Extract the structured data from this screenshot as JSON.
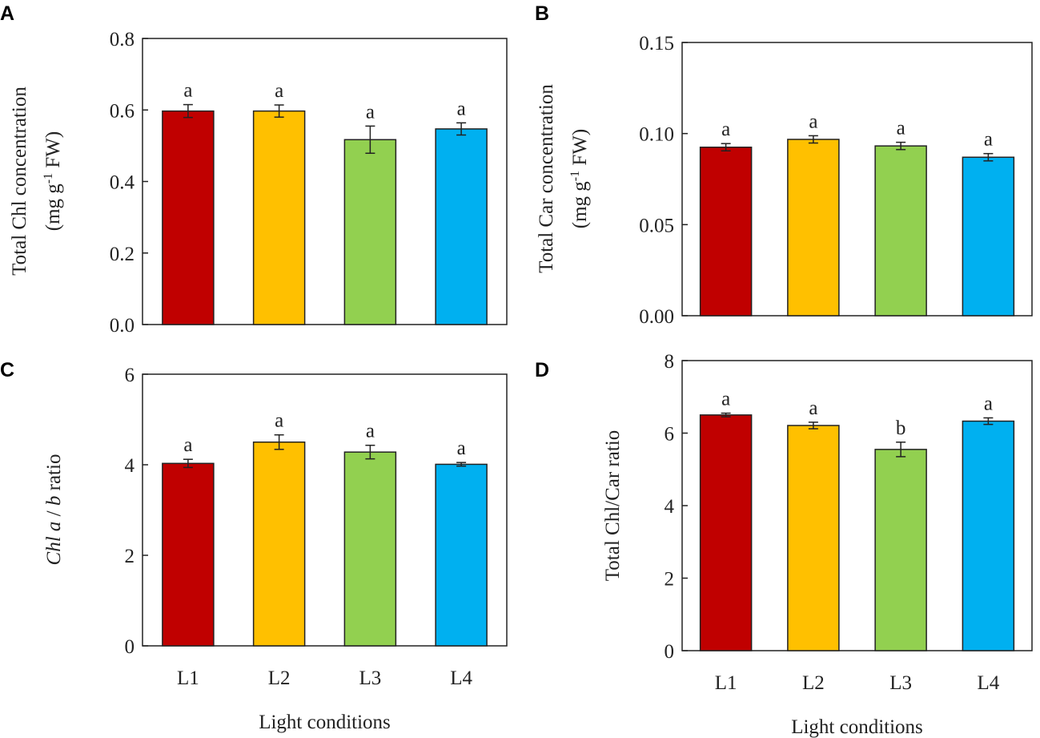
{
  "chart_data": [
    {
      "panel": "A",
      "type": "bar",
      "categories": [
        "L1",
        "L2",
        "L3",
        "L4"
      ],
      "values": [
        0.597,
        0.597,
        0.517,
        0.547
      ],
      "errors": [
        0.018,
        0.017,
        0.038,
        0.017
      ],
      "significance": [
        "a",
        "a",
        "a",
        "a"
      ],
      "ylabel_line1": "Total Chl concentration",
      "ylabel_line2_pre": "(mg  g",
      "ylabel_line2_sup": "-1",
      "ylabel_line2_post": "  FW)",
      "yticks": [
        "0.0",
        "0.2",
        "0.4",
        "0.6",
        "0.8"
      ],
      "ylim": [
        0,
        0.8
      ],
      "xlabel": ""
    },
    {
      "panel": "B",
      "type": "bar",
      "categories": [
        "L1",
        "L2",
        "L3",
        "L4"
      ],
      "values": [
        0.0925,
        0.0968,
        0.0932,
        0.087
      ],
      "errors": [
        0.002,
        0.002,
        0.002,
        0.002
      ],
      "significance": [
        "a",
        "a",
        "a",
        "a"
      ],
      "ylabel_line1": "Total Car concentration",
      "ylabel_line2_pre": "(mg  g",
      "ylabel_line2_sup": "-1",
      "ylabel_line2_post": "  FW)",
      "yticks": [
        "0.00",
        "0.05",
        "0.10",
        "0.15"
      ],
      "ylim": [
        0,
        0.15
      ],
      "xlabel": ""
    },
    {
      "panel": "C",
      "type": "bar",
      "categories": [
        "L1",
        "L2",
        "L3",
        "L4"
      ],
      "values": [
        4.03,
        4.5,
        4.28,
        4.01
      ],
      "errors": [
        0.09,
        0.16,
        0.15,
        0.04
      ],
      "significance": [
        "a",
        "a",
        "a",
        "a"
      ],
      "ylabel_parts": [
        {
          "text": "Chl ",
          "italic": true
        },
        {
          "text": "a",
          "italic": true
        },
        {
          "text": " / ",
          "italic": false
        },
        {
          "text": "b",
          "italic": true
        },
        {
          "text": "  ratio",
          "italic": false
        }
      ],
      "yticks": [
        "0",
        "2",
        "4",
        "6"
      ],
      "ylim": [
        0,
        6
      ],
      "xlabel": "Light conditions"
    },
    {
      "panel": "D",
      "type": "bar",
      "categories": [
        "L1",
        "L2",
        "L3",
        "L4"
      ],
      "values": [
        6.5,
        6.21,
        5.55,
        6.33
      ],
      "errors": [
        0.05,
        0.09,
        0.2,
        0.09
      ],
      "significance": [
        "a",
        "a",
        "b",
        "a"
      ],
      "ylabel_line1": "Total Chl/Car ratio",
      "yticks": [
        "0",
        "2",
        "4",
        "6",
        "8"
      ],
      "ylim": [
        0,
        8
      ],
      "xlabel": "Light conditions"
    }
  ],
  "colors": {
    "L1": "#c00000",
    "L2": "#ffc000",
    "L3": "#92d050",
    "L4": "#00b0f0"
  }
}
